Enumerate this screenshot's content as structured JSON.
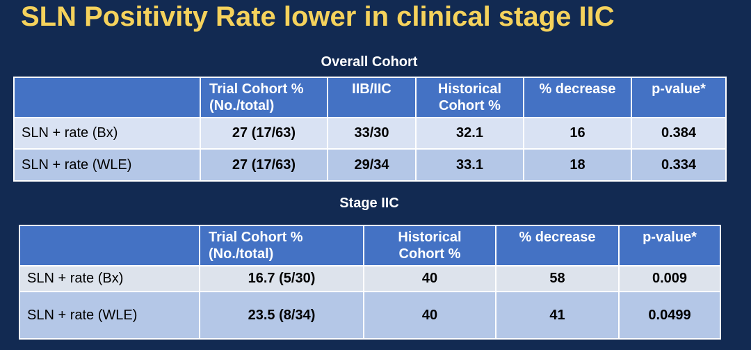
{
  "slide": {
    "title": "SLN Positivity Rate lower in clinical stage IIC"
  },
  "colors": {
    "background": "#122A52",
    "title_text": "#F5D25C",
    "heading_text": "#FFFFFF",
    "table_header_bg": "#4472C4",
    "table_header_text": "#FFFFFF",
    "row_light_t1": "#D9E2F3",
    "row_light_t2": "#DDE3EC",
    "row_medium": "#B4C7E7",
    "table_border": "#FFFFFF",
    "cell_text": "#000000"
  },
  "overall_cohort": {
    "heading": "Overall Cohort",
    "columns": [
      "",
      "Trial Cohort %\n(No./total)",
      "IIB/IIC",
      "Historical\nCohort  %",
      "% decrease",
      "p-value*"
    ],
    "rows": [
      {
        "label": "SLN + rate (Bx)",
        "values": [
          "27 (17/63)",
          "33/30",
          "32.1",
          "16",
          "0.384"
        ]
      },
      {
        "label": "SLN + rate (WLE)",
        "values": [
          "27 (17/63)",
          "29/34",
          "33.1",
          "18",
          "0.334"
        ]
      }
    ]
  },
  "stage_iic": {
    "heading": "Stage IIC",
    "columns": [
      "",
      "Trial Cohort %\n(No./total)",
      "Historical\nCohort  %",
      "% decrease",
      "p-value*"
    ],
    "rows": [
      {
        "label": "SLN + rate  (Bx)",
        "values": [
          "16.7 (5/30)",
          "40",
          "58",
          "0.009"
        ]
      },
      {
        "label": "SLN + rate  (WLE)",
        "values": [
          "23.5 (8/34)",
          "40",
          "41",
          "0.0499"
        ]
      }
    ]
  }
}
